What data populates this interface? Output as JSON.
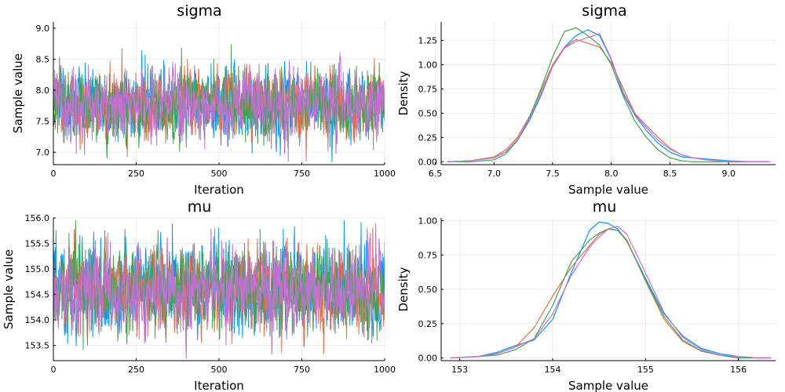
{
  "chart_data": [
    {
      "type": "line",
      "panel": "trace",
      "title": "sigma",
      "xlabel": "Iteration",
      "ylabel": "Sample value",
      "xlim": [
        0,
        1000
      ],
      "ylim": [
        6.8,
        9.1
      ],
      "xticks": [
        0,
        250,
        500,
        750,
        1000
      ],
      "xtick_labels": [
        "0",
        "250",
        "500",
        "750",
        "1000"
      ],
      "yticks": [
        7.0,
        7.5,
        8.0,
        8.5,
        9.0
      ],
      "ytick_labels": [
        "7.0",
        "7.5",
        "8.0",
        "8.5",
        "9.0"
      ],
      "grid": true,
      "legend": "none",
      "trace_summary": {
        "iterations": 1000,
        "center": 7.78,
        "spread_sd": 0.27,
        "min": 6.85,
        "max": 9.07
      },
      "series": [
        {
          "color": "#009AFA",
          "center": 7.78,
          "sd": 0.27
        },
        {
          "color": "#E36F47",
          "center": 7.79,
          "sd": 0.27
        },
        {
          "color": "#3EA44E",
          "center": 7.76,
          "sd": 0.26
        },
        {
          "color": "#C271D2",
          "center": 7.77,
          "sd": 0.27
        }
      ]
    },
    {
      "type": "line",
      "panel": "density",
      "title": "sigma",
      "xlabel": "Sample value",
      "ylabel": "Density",
      "xlim": [
        6.55,
        9.4
      ],
      "ylim": [
        -0.03,
        1.44
      ],
      "xticks": [
        6.5,
        7.0,
        7.5,
        8.0,
        8.5,
        9.0
      ],
      "xtick_labels": [
        "6.5",
        "7.0",
        "7.5",
        "8.0",
        "8.5",
        "9.0"
      ],
      "yticks": [
        0,
        0.25,
        0.5,
        0.75,
        1.0,
        1.25
      ],
      "ytick_labels": [
        "0.00",
        "0.25",
        "0.50",
        "0.75",
        "1.00",
        "1.25"
      ],
      "grid": true,
      "legend": "none",
      "series": [
        {
          "color": "#009AFA",
          "x": [
            6.6,
            6.8,
            7.0,
            7.1,
            7.2,
            7.3,
            7.4,
            7.5,
            7.6,
            7.7,
            7.8,
            7.9,
            8.0,
            8.1,
            8.2,
            8.3,
            8.4,
            8.5,
            8.6,
            8.7,
            8.8,
            8.9,
            9.0,
            9.2,
            9.35
          ],
          "y": [
            0.0,
            0.01,
            0.04,
            0.1,
            0.22,
            0.42,
            0.68,
            0.98,
            1.18,
            1.3,
            1.36,
            1.3,
            1.05,
            0.7,
            0.48,
            0.32,
            0.19,
            0.1,
            0.05,
            0.04,
            0.03,
            0.02,
            0.01,
            0.0,
            0.0
          ]
        },
        {
          "color": "#E36F47",
          "x": [
            6.6,
            6.8,
            7.0,
            7.1,
            7.2,
            7.3,
            7.4,
            7.5,
            7.6,
            7.7,
            7.8,
            7.9,
            8.0,
            8.1,
            8.2,
            8.3,
            8.4,
            8.5,
            8.6,
            8.7,
            8.8,
            8.9,
            9.0,
            9.2,
            9.35
          ],
          "y": [
            0.0,
            0.01,
            0.05,
            0.12,
            0.25,
            0.46,
            0.73,
            1.0,
            1.18,
            1.26,
            1.22,
            1.18,
            1.02,
            0.76,
            0.5,
            0.37,
            0.25,
            0.14,
            0.07,
            0.04,
            0.02,
            0.01,
            0.0,
            0.0,
            0.0
          ]
        },
        {
          "color": "#3EA44E",
          "x": [
            6.6,
            6.8,
            7.0,
            7.1,
            7.2,
            7.3,
            7.4,
            7.5,
            7.6,
            7.7,
            7.8,
            7.9,
            8.0,
            8.1,
            8.2,
            8.3,
            8.4,
            8.5,
            8.6,
            8.7,
            8.8,
            8.9,
            9.0,
            9.2,
            9.35
          ],
          "y": [
            0.0,
            0.0,
            0.02,
            0.08,
            0.22,
            0.45,
            0.75,
            1.08,
            1.34,
            1.38,
            1.3,
            1.2,
            1.0,
            0.68,
            0.42,
            0.25,
            0.12,
            0.04,
            0.01,
            0.0,
            0.0,
            0.0,
            0.0,
            0.0,
            0.0
          ]
        },
        {
          "color": "#C271D2",
          "x": [
            6.6,
            6.8,
            7.0,
            7.1,
            7.2,
            7.3,
            7.4,
            7.5,
            7.6,
            7.7,
            7.8,
            7.9,
            8.0,
            8.1,
            8.2,
            8.3,
            8.4,
            8.5,
            8.6,
            8.7,
            8.8,
            8.9,
            9.0,
            9.2,
            9.35
          ],
          "y": [
            0.0,
            0.01,
            0.04,
            0.1,
            0.23,
            0.44,
            0.7,
            0.98,
            1.17,
            1.24,
            1.28,
            1.32,
            1.06,
            0.72,
            0.49,
            0.35,
            0.22,
            0.13,
            0.07,
            0.04,
            0.02,
            0.01,
            0.0,
            0.0,
            0.0
          ]
        }
      ]
    },
    {
      "type": "line",
      "panel": "trace",
      "title": "mu",
      "xlabel": "Iteration",
      "ylabel": "Sample value",
      "xlim": [
        0,
        1000
      ],
      "ylim": [
        153.2,
        156.0
      ],
      "xticks": [
        0,
        250,
        500,
        750,
        1000
      ],
      "xtick_labels": [
        "0",
        "250",
        "500",
        "750",
        "1000"
      ],
      "yticks": [
        153.5,
        154.0,
        154.5,
        155.0,
        155.5,
        156.0
      ],
      "ytick_labels": [
        "153.5",
        "154.0",
        "154.5",
        "155.0",
        "155.5",
        "156.0"
      ],
      "grid": true,
      "legend": "none",
      "trace_summary": {
        "iterations": 1000,
        "center": 154.6,
        "spread_sd": 0.42,
        "min": 153.2,
        "max": 155.95
      },
      "series": [
        {
          "color": "#009AFA",
          "center": 154.6,
          "sd": 0.42
        },
        {
          "color": "#E36F47",
          "center": 154.6,
          "sd": 0.42
        },
        {
          "color": "#3EA44E",
          "center": 154.59,
          "sd": 0.42
        },
        {
          "color": "#C271D2",
          "center": 154.61,
          "sd": 0.41
        }
      ]
    },
    {
      "type": "line",
      "panel": "density",
      "title": "mu",
      "xlabel": "Sample value",
      "ylabel": "Density",
      "xlim": [
        152.8,
        156.4
      ],
      "ylim": [
        -0.02,
        1.02
      ],
      "xticks": [
        153,
        154,
        155,
        156
      ],
      "xtick_labels": [
        "153",
        "154",
        "155",
        "156"
      ],
      "yticks": [
        0,
        0.25,
        0.5,
        0.75,
        1.0
      ],
      "ytick_labels": [
        "0.00",
        "0.25",
        "0.50",
        "0.75",
        "1.00"
      ],
      "grid": true,
      "legend": "none",
      "series": [
        {
          "color": "#009AFA",
          "x": [
            152.9,
            153.2,
            153.4,
            153.6,
            153.8,
            154.0,
            154.2,
            154.4,
            154.5,
            154.6,
            154.7,
            154.8,
            155.0,
            155.2,
            155.4,
            155.6,
            155.8,
            156.0,
            156.2,
            156.35
          ],
          "y": [
            0.0,
            0.01,
            0.04,
            0.09,
            0.13,
            0.28,
            0.62,
            0.93,
            0.99,
            0.98,
            0.94,
            0.85,
            0.58,
            0.32,
            0.16,
            0.07,
            0.03,
            0.01,
            0.0,
            0.0
          ]
        },
        {
          "color": "#E36F47",
          "x": [
            152.9,
            153.2,
            153.4,
            153.6,
            153.8,
            154.0,
            154.2,
            154.4,
            154.5,
            154.6,
            154.7,
            154.8,
            155.0,
            155.2,
            155.4,
            155.6,
            155.8,
            156.0,
            156.2,
            156.35
          ],
          "y": [
            0.0,
            0.01,
            0.03,
            0.08,
            0.22,
            0.45,
            0.66,
            0.82,
            0.9,
            0.94,
            0.93,
            0.86,
            0.56,
            0.28,
            0.12,
            0.05,
            0.02,
            0.0,
            0.0,
            0.0
          ]
        },
        {
          "color": "#3EA44E",
          "x": [
            152.9,
            153.2,
            153.4,
            153.6,
            153.8,
            154.0,
            154.2,
            154.4,
            154.5,
            154.6,
            154.7,
            154.8,
            155.0,
            155.2,
            155.4,
            155.6,
            155.8,
            156.0,
            156.2,
            156.35
          ],
          "y": [
            0.0,
            0.01,
            0.02,
            0.06,
            0.14,
            0.38,
            0.7,
            0.86,
            0.91,
            0.94,
            0.93,
            0.85,
            0.57,
            0.3,
            0.13,
            0.05,
            0.02,
            0.0,
            0.0,
            0.0
          ]
        },
        {
          "color": "#C271D2",
          "x": [
            152.9,
            153.2,
            153.4,
            153.6,
            153.8,
            154.0,
            154.2,
            154.4,
            154.5,
            154.6,
            154.7,
            154.8,
            155.0,
            155.2,
            155.4,
            155.6,
            155.8,
            156.0,
            156.2,
            156.35
          ],
          "y": [
            0.0,
            0.01,
            0.03,
            0.08,
            0.14,
            0.32,
            0.6,
            0.81,
            0.88,
            0.94,
            0.96,
            0.9,
            0.62,
            0.33,
            0.15,
            0.06,
            0.02,
            0.01,
            0.0,
            0.0
          ]
        }
      ]
    }
  ]
}
